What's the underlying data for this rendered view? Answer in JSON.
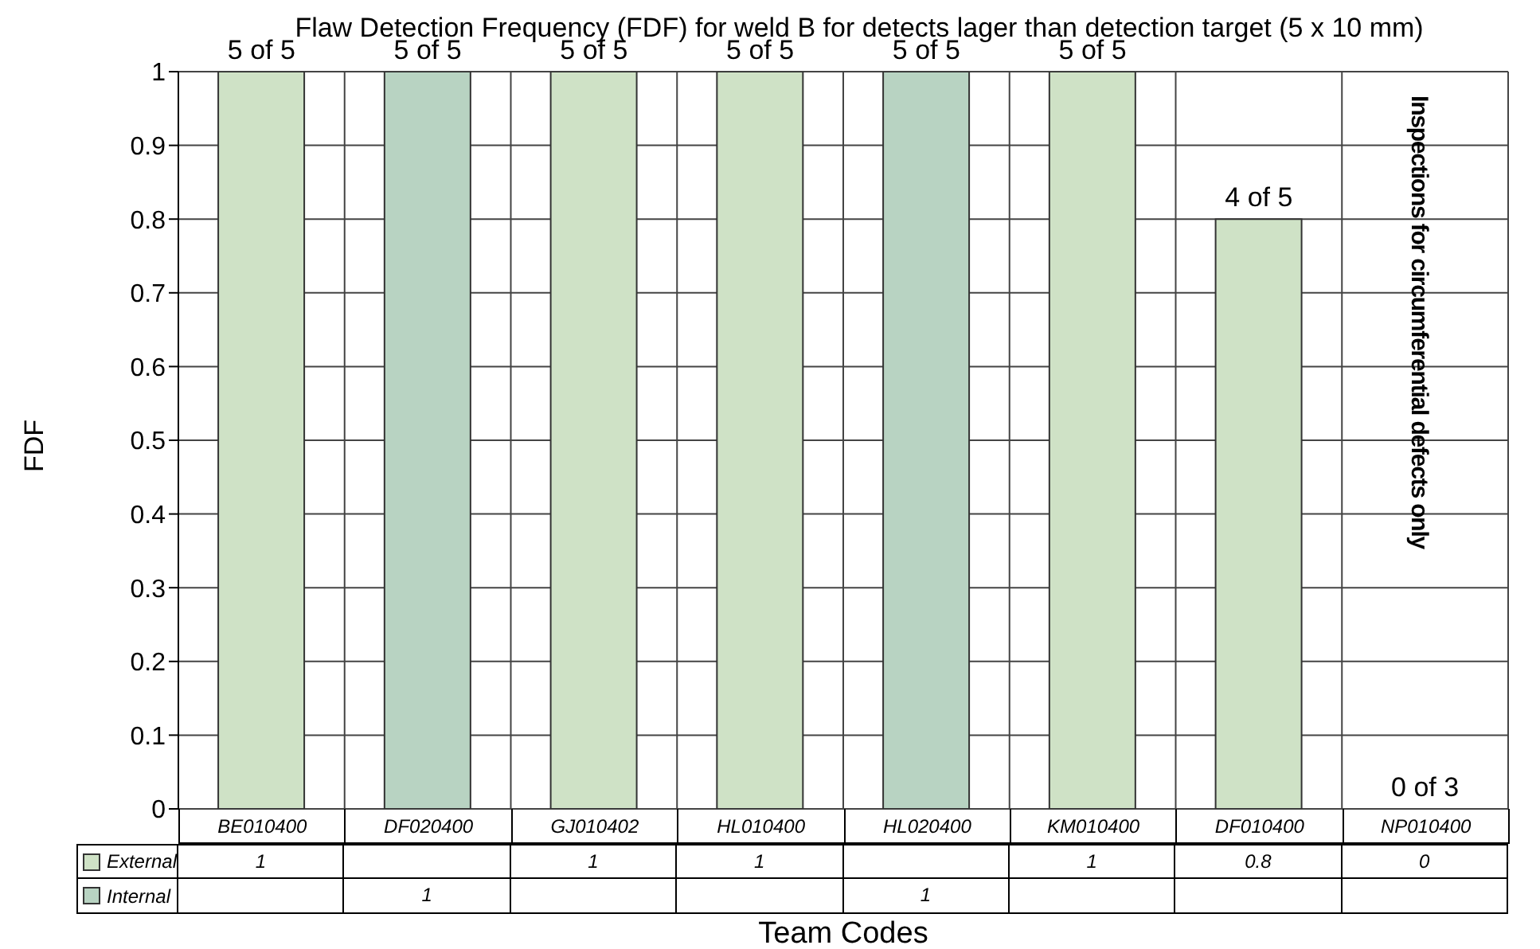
{
  "chart_data": {
    "type": "bar",
    "title": "Flaw Detection Frequency (FDF) for weld B for detects lager than detection target (5 x 10 mm)",
    "xlabel": "Team Codes",
    "ylabel": "FDF",
    "categories": [
      "BE010400",
      "DF020400",
      "GJ010402",
      "HL010400",
      "HL020400",
      "KM010400",
      "DF010400",
      "NP010400"
    ],
    "series": [
      {
        "name": "External",
        "color": "#cfe2c6",
        "values": [
          1,
          null,
          1,
          1,
          null,
          1,
          0.8,
          0
        ]
      },
      {
        "name": "Internal",
        "color": "#b8d3c2",
        "values": [
          null,
          1,
          null,
          null,
          1,
          null,
          null,
          null
        ]
      }
    ],
    "stacked": true,
    "totals": [
      "5 of 5",
      "5 of 5",
      "5 of 5",
      "5 of 5",
      "5 of 5",
      "5 of 5",
      "4 of 5",
      "0 of 3"
    ],
    "annotations": [
      "Inspections for circumferential defects only"
    ],
    "ylim": [
      0,
      1
    ],
    "yticks": [
      0,
      0.1,
      0.2,
      0.3,
      0.4,
      0.5,
      0.6,
      0.7,
      0.8,
      0.9,
      1
    ],
    "grid": true,
    "legend": "bottom",
    "data_labels": true
  }
}
